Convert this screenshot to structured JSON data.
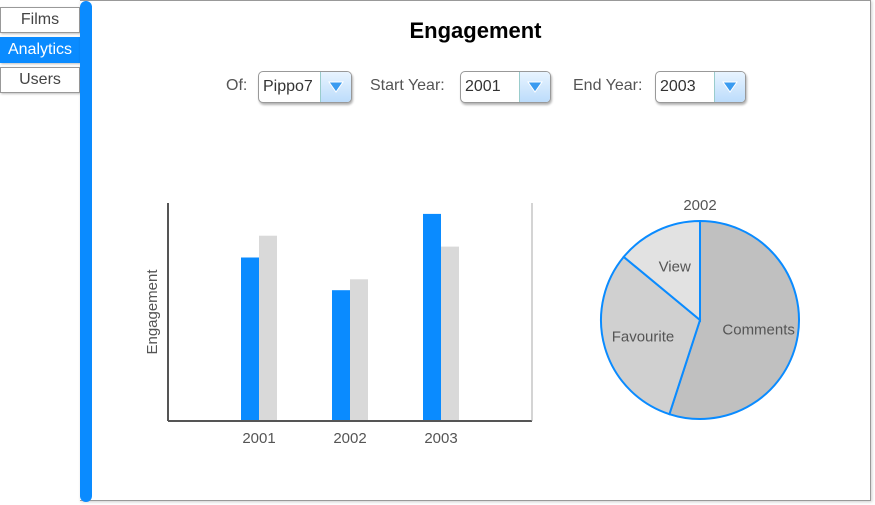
{
  "nav": {
    "items": [
      {
        "label": "Films"
      },
      {
        "label": "Analytics"
      },
      {
        "label": "Users"
      }
    ],
    "active_index": 1
  },
  "main": {
    "title": "Engagement",
    "filters": {
      "of_label": "Of:",
      "of_value": "Pippo7",
      "start_label": "Start Year:",
      "start_value": "2001",
      "end_label": "End Year:",
      "end_value": "2003"
    }
  },
  "colors": {
    "accent": "#0a8bff",
    "series_a": "#0a8bff",
    "series_b": "#d9d9d9",
    "pie_comments": "#c0c0c0",
    "pie_favourite": "#d0d0d0",
    "pie_view": "#e2e2e2"
  },
  "chart_data": [
    {
      "type": "bar",
      "categories": [
        "2001",
        "2002",
        "2003"
      ],
      "series": [
        {
          "values": [
            75,
            60,
            95
          ]
        },
        {
          "values": [
            85,
            65,
            80
          ]
        }
      ],
      "ylabel": "Engagement",
      "ylim": [
        0,
        100
      ],
      "grid": false
    },
    {
      "type": "pie",
      "title": "2002",
      "slices": [
        {
          "label": "Comments",
          "value": 55
        },
        {
          "label": "Favourite",
          "value": 31
        },
        {
          "label": "View",
          "value": 14
        }
      ]
    }
  ]
}
